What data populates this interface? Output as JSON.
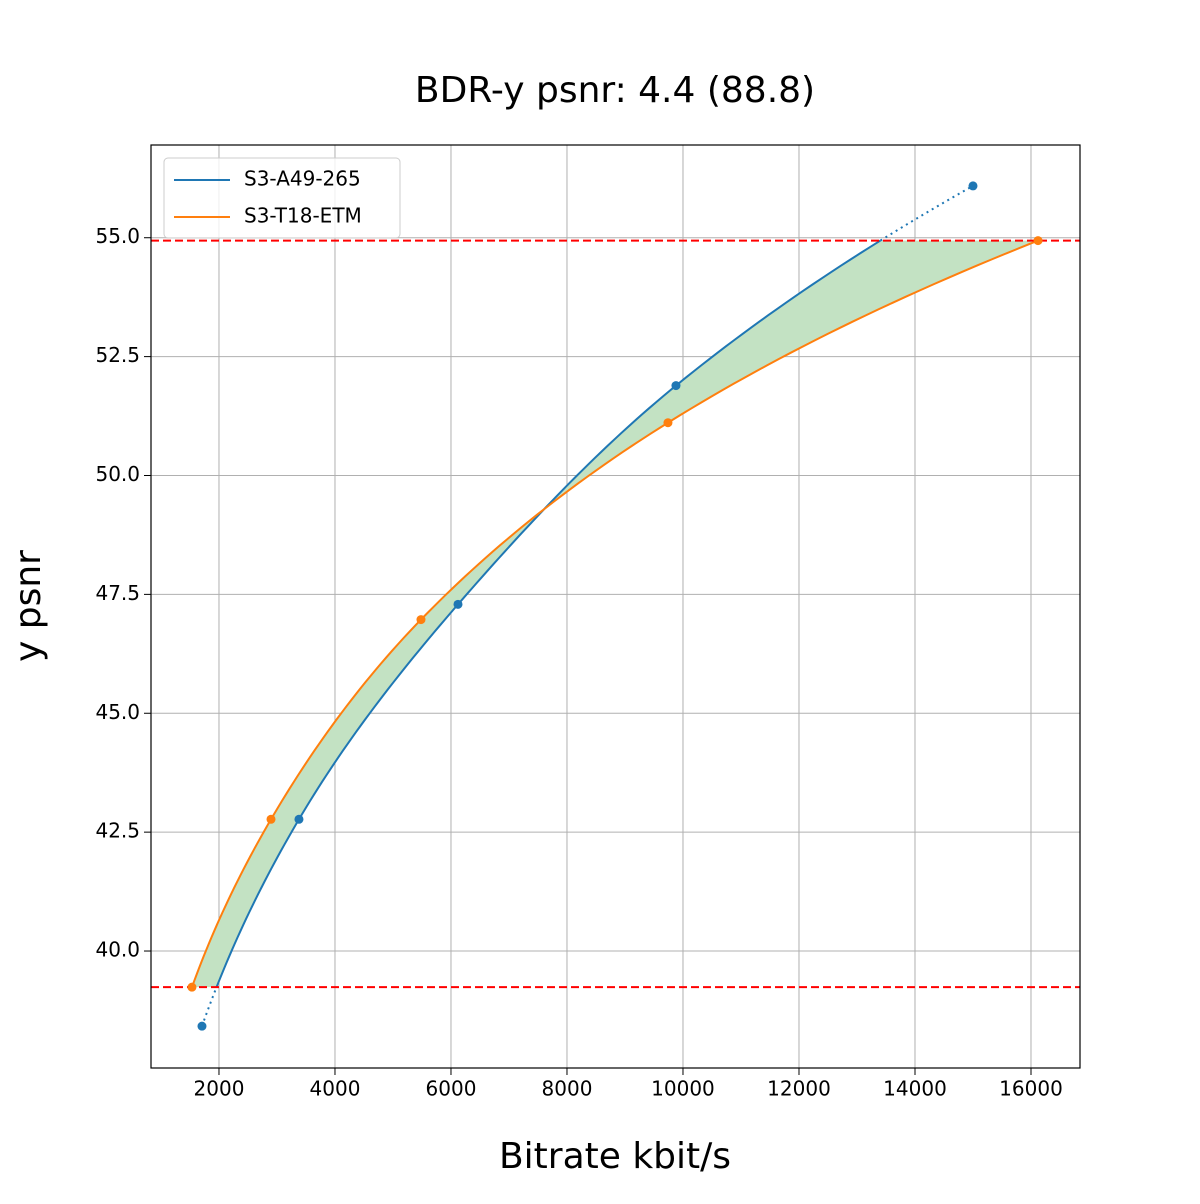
{
  "chart_data": {
    "type": "line",
    "title": "BDR-y psnr: 4.4 (88.8)",
    "x_label": "Bitrate kbit/s",
    "y_label": "y psnr",
    "series": [
      {
        "name": "S3-A49-265",
        "color": "#1f77b4",
        "x": [
          1707,
          3379,
          6121,
          9879,
          15000
        ],
        "values": [
          38.42,
          42.77,
          47.29,
          51.89,
          56.09
        ]
      },
      {
        "name": "S3-T18-ETM",
        "color": "#ff7f0e",
        "x": [
          1534,
          2897,
          5483,
          9741,
          16121
        ],
        "values": [
          39.24,
          42.77,
          46.97,
          51.11,
          54.94
        ]
      }
    ],
    "hlines": [
      54.94,
      39.24
    ],
    "hline_color": "#ff0000",
    "fill_color": "#c3e2c3",
    "xlim": [
      828,
      16845
    ],
    "ylim": [
      37.54,
      56.95
    ],
    "xticks": [
      2000,
      4000,
      6000,
      8000,
      10000,
      12000,
      14000,
      16000
    ],
    "yticks": [
      {
        "value": 40,
        "label": "40.0"
      },
      42.5,
      {
        "value": 45,
        "label": "45.0"
      },
      47.5,
      {
        "value": 50,
        "label": "50.0"
      },
      52.5,
      {
        "value": 55,
        "label": "55.0"
      }
    ],
    "grid": true,
    "legend": "upper left"
  }
}
